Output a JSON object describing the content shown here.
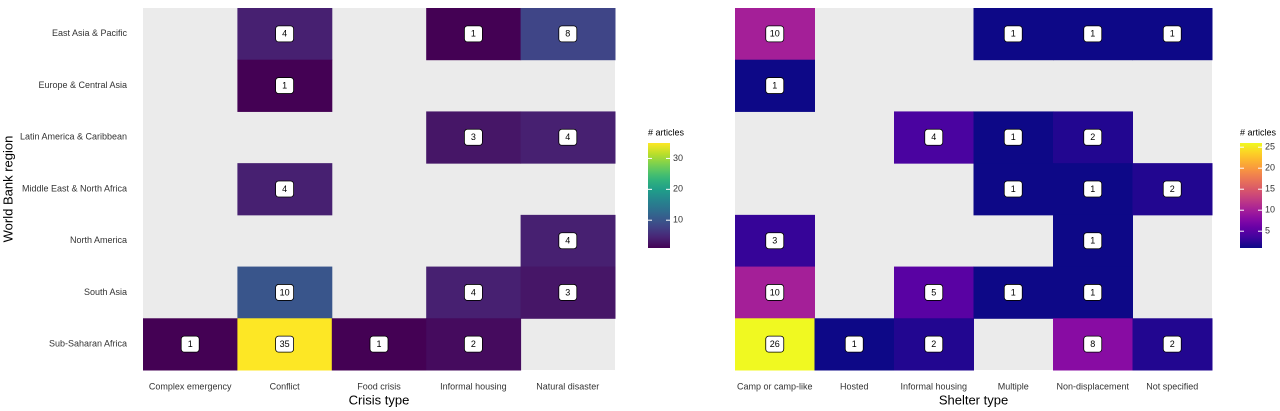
{
  "chart_data": [
    {
      "type": "heatmap",
      "x_label": "Crisis type",
      "y_label": "World Bank region",
      "x_categories": [
        "Complex emergency",
        "Conflict",
        "Food crisis",
        "Informal housing",
        "Natural disaster"
      ],
      "y_categories": [
        "East Asia & Pacific",
        "Europe & Central Asia",
        "Latin America & Caribbean",
        "Middle East & North Africa",
        "North America",
        "South Asia",
        "Sub-Saharan Africa"
      ],
      "values": [
        [
          null,
          4,
          null,
          1,
          8
        ],
        [
          null,
          1,
          null,
          null,
          null
        ],
        [
          null,
          null,
          null,
          3,
          4
        ],
        [
          null,
          4,
          null,
          null,
          null
        ],
        [
          null,
          null,
          null,
          null,
          4
        ],
        [
          null,
          10,
          null,
          4,
          3
        ],
        [
          1,
          35,
          1,
          2,
          null
        ]
      ],
      "colorbar": {
        "title": "# articles",
        "lim": [
          1,
          35
        ],
        "ticks": [
          10,
          20,
          30
        ],
        "colormap": "viridis"
      },
      "na_color": "#ebebeb"
    },
    {
      "type": "heatmap",
      "x_label": "Shelter type",
      "x_categories": [
        "Camp or camp-like",
        "Hosted",
        "Informal housing",
        "Multiple",
        "Non-displacement",
        "Not specified"
      ],
      "values": [
        [
          10,
          null,
          null,
          1,
          1,
          1
        ],
        [
          1,
          null,
          null,
          null,
          null,
          null
        ],
        [
          null,
          null,
          4,
          1,
          2,
          null
        ],
        [
          null,
          null,
          null,
          1,
          1,
          2
        ],
        [
          3,
          null,
          null,
          null,
          1,
          null
        ],
        [
          10,
          null,
          5,
          1,
          1,
          null
        ],
        [
          26,
          1,
          2,
          null,
          8,
          2
        ]
      ],
      "colorbar": {
        "title": "# articles",
        "lim": [
          1,
          26
        ],
        "ticks": [
          5,
          10,
          15,
          20,
          25
        ],
        "colormap": "plasma"
      },
      "na_color": "#ebebeb"
    }
  ]
}
